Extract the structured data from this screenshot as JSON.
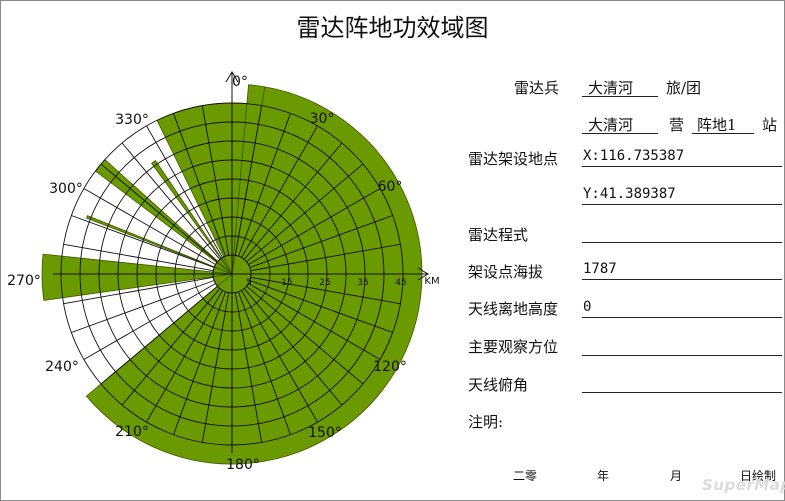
{
  "title": "雷达阵地功效域图",
  "diagram": {
    "directions": [
      "0°",
      "30°",
      "60°",
      "120°",
      "150°",
      "180°",
      "210°",
      "240°",
      "270°",
      "300°",
      "330°"
    ],
    "distance_labels": [
      "5",
      "15",
      "25",
      "35",
      "45"
    ],
    "unit": "KM",
    "coverage_color": "#6a9a00",
    "coverage": [
      {
        "from_deg": 0,
        "to_deg": 5,
        "radius_km": 45
      },
      {
        "from_deg": 5,
        "to_deg": 10,
        "radius_km": 50
      },
      {
        "from_deg": 10,
        "to_deg": 230,
        "radius_km": 50
      },
      {
        "from_deg": 230,
        "to_deg": 262,
        "radius_km": 5
      },
      {
        "from_deg": 262,
        "to_deg": 276,
        "radius_km": 50
      },
      {
        "from_deg": 276,
        "to_deg": 291,
        "radius_km": 5
      },
      {
        "from_deg": 291,
        "to_deg": 292,
        "radius_km": 41
      },
      {
        "from_deg": 292,
        "to_deg": 307,
        "radius_km": 5
      },
      {
        "from_deg": 307,
        "to_deg": 312,
        "radius_km": 45
      },
      {
        "from_deg": 312,
        "to_deg": 324,
        "radius_km": 5
      },
      {
        "from_deg": 324,
        "to_deg": 326,
        "radius_km": 36
      },
      {
        "from_deg": 326,
        "to_deg": 334,
        "radius_km": 5
      },
      {
        "from_deg": 334,
        "to_deg": 360,
        "radius_km": 45
      }
    ]
  },
  "form": {
    "radar_unit_label": "雷达兵",
    "brigade": "大清河",
    "brigade_suffix": "旅/团",
    "battalion": "大清河",
    "battalion_suffix": "营",
    "position": "阵地1",
    "station_suffix": "站",
    "site_label": "雷达架设地点",
    "x_value": "X:116.735387",
    "y_value": "Y:41.389387",
    "radar_type_label": "雷达程式",
    "radar_type_value": "",
    "altitude_label": "架设点海拔",
    "altitude_value": "1787",
    "antenna_height_label": "天线离地高度",
    "antenna_height_value": "0",
    "main_direction_label": "主要观察方位",
    "main_direction_value": "",
    "antenna_pitch_label": "天线俯角",
    "antenna_pitch_value": "",
    "note_label": "注明:"
  },
  "footer": {
    "year_prefix": "二零",
    "year": "年",
    "month": "月",
    "day_drawn": "日绘制"
  },
  "watermark": "SuperMap"
}
